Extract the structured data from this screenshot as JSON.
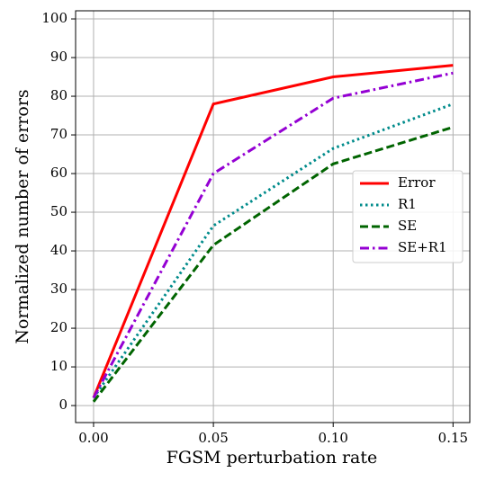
{
  "chart_data": {
    "type": "line",
    "xlabel": "FGSM perturbation rate",
    "ylabel": "Normalized number of errors",
    "x": [
      0,
      0.05,
      0.1,
      0.15
    ],
    "series": [
      {
        "name": "Error",
        "color": "#ff0000",
        "linestyle": "solid",
        "values": [
          2,
          78,
          85,
          88
        ]
      },
      {
        "name": "R1",
        "color": "#008b8b",
        "linestyle": "dotted",
        "values": [
          2,
          46.5,
          66.5,
          78
        ]
      },
      {
        "name": "SE",
        "color": "#006400",
        "linestyle": "dashed",
        "values": [
          1,
          41.5,
          62.5,
          72
        ]
      },
      {
        "name": "SE+R1",
        "color": "#9400d3",
        "linestyle": "dashdot",
        "values": [
          2,
          60,
          79.5,
          86
        ]
      }
    ],
    "xlim": [
      -0.0075,
      0.157
    ],
    "xticks": [
      {
        "value": 0,
        "label": "0.00"
      },
      0.05,
      {
        "value": 0.1,
        "label": "0.10"
      },
      0.15
    ],
    "ylim": [
      -4.4,
      102.1
    ],
    "yticks": [
      0,
      10,
      20,
      30,
      40,
      50,
      60,
      70,
      80,
      90,
      100
    ],
    "grid": true,
    "legend": "center right"
  }
}
